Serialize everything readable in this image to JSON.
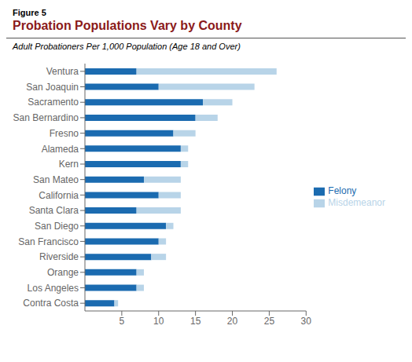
{
  "chart_data": {
    "type": "bar",
    "orientation": "horizontal",
    "stacked": true,
    "title": "Probation Populations Vary by County",
    "subtitle": "Adult Probationers Per 1,000 Population (Age 18 and Over)",
    "annotations": [
      "Figure 5"
    ],
    "categories": [
      "Ventura",
      "San Joaquin",
      "Sacramento",
      "San Bernardino",
      "Fresno",
      "Alameda",
      "Kern",
      "San Mateo",
      "California",
      "Santa Clara",
      "San Diego",
      "San Francisco",
      "Riverside",
      "Orange",
      "Los Angeles",
      "Contra Costa"
    ],
    "series": [
      {
        "name": "Felony",
        "color": "#1B6BB0",
        "values": [
          7,
          10,
          16,
          15,
          12,
          13,
          13,
          8,
          10,
          7,
          11,
          10,
          9,
          7,
          7,
          4
        ]
      },
      {
        "name": "Misdemeanor",
        "color": "#B8D4E8",
        "values": [
          19,
          13,
          4,
          3,
          3,
          1,
          1,
          5,
          3,
          6,
          1,
          1,
          2,
          1,
          1,
          0.5
        ]
      }
    ],
    "xlim": [
      0,
      30
    ],
    "xticks": [
      5,
      10,
      15,
      20,
      25,
      30
    ],
    "grid": false,
    "legend": "right"
  }
}
